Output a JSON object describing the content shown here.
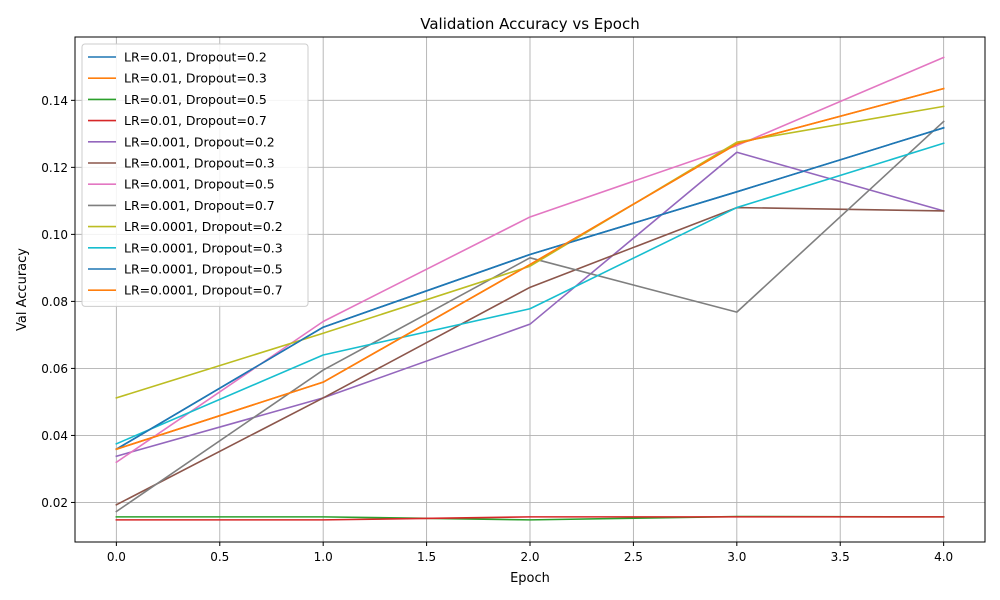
{
  "chart_data": {
    "type": "line",
    "title": "Validation Accuracy vs Epoch",
    "xlabel": "Epoch",
    "ylabel": "Val Accuracy",
    "x": [
      0,
      1,
      2,
      3,
      4
    ],
    "xlim": [
      -0.2,
      4.2
    ],
    "ylim": [
      0.0082,
      0.1589
    ],
    "xticks": [
      "0.0",
      "0.5",
      "1.0",
      "1.5",
      "2.0",
      "2.5",
      "3.0",
      "3.5",
      "4.0"
    ],
    "yticks": [
      "0.02",
      "0.04",
      "0.06",
      "0.08",
      "0.10",
      "0.12",
      "0.14"
    ],
    "grid": true,
    "legend_position": "top-left",
    "series": [
      {
        "name": "LR=0.01, Dropout=0.2",
        "color": "#1f77b4",
        "values": [
          0.0359,
          0.0723,
          0.094,
          0.1127,
          0.1318
        ]
      },
      {
        "name": "LR=0.01, Dropout=0.3",
        "color": "#ff7f0e",
        "values": [
          0.0359,
          0.0559,
          0.091,
          0.127,
          0.1435
        ]
      },
      {
        "name": "LR=0.01, Dropout=0.5",
        "color": "#2ca02c",
        "values": [
          0.0157,
          0.0157,
          0.0148,
          0.0158,
          0.0157
        ]
      },
      {
        "name": "LR=0.01, Dropout=0.7",
        "color": "#d62728",
        "values": [
          0.0148,
          0.0148,
          0.0157,
          0.0157,
          0.0157
        ]
      },
      {
        "name": "LR=0.001, Dropout=0.2",
        "color": "#9467bd",
        "values": [
          0.0338,
          0.0512,
          0.0732,
          0.1245,
          0.107
        ]
      },
      {
        "name": "LR=0.001, Dropout=0.3",
        "color": "#8c564b",
        "values": [
          0.0193,
          0.0512,
          0.0842,
          0.108,
          0.107
        ]
      },
      {
        "name": "LR=0.001, Dropout=0.5",
        "color": "#e377c2",
        "values": [
          0.032,
          0.074,
          0.1052,
          0.1265,
          0.1528
        ]
      },
      {
        "name": "LR=0.001, Dropout=0.7",
        "color": "#7f7f7f",
        "values": [
          0.0173,
          0.0595,
          0.093,
          0.0768,
          0.1337
        ]
      },
      {
        "name": "LR=0.0001, Dropout=0.2",
        "color": "#bcbd22",
        "values": [
          0.0512,
          0.0705,
          0.0905,
          0.1275,
          0.1382
        ]
      },
      {
        "name": "LR=0.0001, Dropout=0.3",
        "color": "#17becf",
        "values": [
          0.0375,
          0.064,
          0.0778,
          0.108,
          0.1272
        ]
      },
      {
        "name": "LR=0.0001, Dropout=0.5",
        "color": "#1f77b4",
        "values": [
          0.0359,
          0.0723,
          0.094,
          0.1127,
          0.1318
        ]
      },
      {
        "name": "LR=0.0001, Dropout=0.7",
        "color": "#ff7f0e",
        "values": [
          0.0359,
          0.0559,
          0.091,
          0.127,
          0.1435
        ]
      }
    ]
  }
}
